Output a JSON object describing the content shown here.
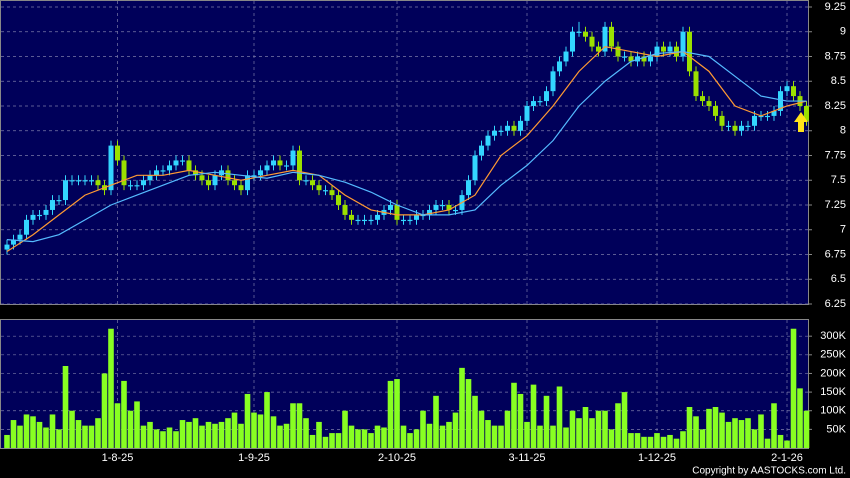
{
  "chart_data": [
    {
      "type": "candlestick",
      "categories": [
        null,
        null,
        null,
        null,
        null,
        null,
        null,
        null,
        null,
        null,
        null,
        null,
        null,
        null,
        null,
        null,
        null,
        "1-8-25",
        null,
        null,
        null,
        null,
        null,
        null,
        null,
        null,
        null,
        null,
        null,
        null,
        null,
        null,
        null,
        null,
        null,
        null,
        null,
        null,
        "1-9-25",
        null,
        null,
        null,
        null,
        null,
        null,
        null,
        null,
        null,
        null,
        null,
        null,
        null,
        null,
        null,
        null,
        null,
        null,
        null,
        null,
        null,
        "2-10-25",
        null,
        null,
        null,
        null,
        null,
        null,
        null,
        null,
        null,
        null,
        null,
        null,
        null,
        null,
        null,
        null,
        null,
        null,
        null,
        "3-11-25",
        null,
        null,
        null,
        null,
        null,
        null,
        null,
        null,
        null,
        null,
        null,
        null,
        null,
        null,
        null,
        null,
        null,
        null,
        null,
        "1-12-25",
        null,
        null,
        null,
        null,
        null,
        null,
        null,
        null,
        null,
        null,
        null,
        null,
        null,
        null,
        null,
        null,
        null,
        null,
        null,
        "2-1-26",
        null,
        null,
        null
      ],
      "open": [
        6.8,
        6.85,
        6.9,
        6.95,
        7.1,
        7.15,
        7.15,
        7.2,
        7.3,
        7.3,
        7.5,
        7.5,
        7.5,
        7.5,
        7.5,
        7.45,
        7.4,
        7.85,
        7.7,
        7.45,
        7.45,
        7.45,
        7.5,
        7.55,
        7.6,
        7.6,
        7.65,
        7.7,
        7.7,
        7.6,
        7.55,
        7.5,
        7.45,
        7.55,
        7.6,
        7.5,
        7.45,
        7.4,
        7.55,
        7.55,
        7.6,
        7.65,
        7.7,
        7.65,
        7.65,
        7.8,
        7.5,
        7.5,
        7.45,
        7.4,
        7.4,
        7.35,
        7.25,
        7.15,
        7.1,
        7.1,
        7.1,
        7.1,
        7.15,
        7.2,
        7.25,
        7.1,
        7.1,
        7.1,
        7.15,
        7.15,
        7.2,
        7.25,
        7.25,
        7.2,
        7.2,
        7.35,
        7.5,
        7.75,
        7.85,
        7.95,
        8.0,
        8.0,
        8.05,
        8.0,
        8.1,
        8.25,
        8.3,
        8.3,
        8.4,
        8.6,
        8.7,
        8.8,
        9.0,
        9.0,
        8.95,
        8.85,
        8.8,
        9.05,
        8.85,
        8.75,
        8.75,
        8.7,
        8.75,
        8.7,
        8.75,
        8.85,
        8.8,
        8.85,
        8.75,
        9.0,
        8.6,
        8.35,
        8.3,
        8.25,
        8.15,
        8.05,
        8.05,
        8.0,
        8.05,
        8.05,
        8.15,
        8.15,
        8.15,
        8.2,
        8.4,
        8.45,
        8.35,
        8.25
      ],
      "high": [
        6.9,
        6.95,
        7.0,
        7.15,
        7.2,
        7.2,
        7.25,
        7.35,
        7.35,
        7.55,
        7.55,
        7.55,
        7.55,
        7.55,
        7.55,
        7.5,
        7.9,
        7.9,
        7.75,
        7.5,
        7.5,
        7.55,
        7.6,
        7.65,
        7.65,
        7.7,
        7.75,
        7.75,
        7.75,
        7.65,
        7.6,
        7.55,
        7.6,
        7.65,
        7.65,
        7.55,
        7.5,
        7.6,
        7.6,
        7.65,
        7.7,
        7.75,
        7.75,
        7.7,
        7.85,
        7.85,
        7.55,
        7.55,
        7.5,
        7.45,
        7.45,
        7.4,
        7.3,
        7.2,
        7.15,
        7.15,
        7.15,
        7.2,
        7.25,
        7.3,
        7.3,
        7.15,
        7.15,
        7.2,
        7.2,
        7.25,
        7.3,
        7.3,
        7.3,
        7.25,
        7.4,
        7.55,
        7.8,
        7.9,
        8.0,
        8.05,
        8.05,
        8.1,
        8.1,
        8.15,
        8.3,
        8.35,
        8.35,
        8.45,
        8.65,
        8.75,
        8.85,
        9.05,
        9.1,
        9.05,
        9.0,
        8.9,
        9.1,
        9.1,
        8.9,
        8.8,
        8.8,
        8.8,
        8.8,
        8.8,
        8.9,
        8.9,
        8.9,
        8.9,
        9.05,
        9.05,
        8.65,
        8.4,
        8.35,
        8.3,
        8.2,
        8.1,
        8.1,
        8.1,
        8.1,
        8.2,
        8.2,
        8.2,
        8.25,
        8.45,
        8.5,
        8.5,
        8.4,
        8.3
      ],
      "low": [
        6.75,
        6.8,
        6.85,
        6.9,
        7.05,
        7.1,
        7.1,
        7.15,
        7.25,
        7.25,
        7.45,
        7.45,
        7.45,
        7.45,
        7.4,
        7.35,
        7.35,
        7.65,
        7.4,
        7.4,
        7.4,
        7.4,
        7.45,
        7.5,
        7.55,
        7.55,
        7.6,
        7.65,
        7.55,
        7.5,
        7.45,
        7.4,
        7.4,
        7.5,
        7.45,
        7.4,
        7.35,
        7.35,
        7.5,
        7.5,
        7.55,
        7.6,
        7.6,
        7.6,
        7.6,
        7.45,
        7.45,
        7.4,
        7.35,
        7.35,
        7.3,
        7.2,
        7.1,
        7.05,
        7.05,
        7.05,
        7.05,
        7.05,
        7.1,
        7.15,
        7.05,
        7.05,
        7.05,
        7.05,
        7.1,
        7.1,
        7.15,
        7.2,
        7.15,
        7.15,
        7.15,
        7.3,
        7.45,
        7.7,
        7.8,
        7.9,
        7.95,
        7.95,
        7.95,
        7.95,
        8.05,
        8.2,
        8.25,
        8.25,
        8.35,
        8.55,
        8.65,
        8.75,
        8.95,
        8.9,
        8.8,
        8.75,
        8.75,
        8.8,
        8.7,
        8.7,
        8.65,
        8.65,
        8.65,
        8.65,
        8.7,
        8.75,
        8.75,
        8.7,
        8.7,
        8.55,
        8.3,
        8.25,
        8.2,
        8.1,
        8.0,
        8.0,
        7.95,
        7.95,
        8.0,
        8.0,
        8.1,
        8.1,
        8.1,
        8.15,
        8.35,
        8.3,
        8.2,
        8.05
      ],
      "close": [
        6.85,
        6.9,
        6.95,
        7.1,
        7.15,
        7.15,
        7.2,
        7.3,
        7.3,
        7.5,
        7.5,
        7.5,
        7.5,
        7.5,
        7.45,
        7.4,
        7.85,
        7.7,
        7.45,
        7.45,
        7.45,
        7.5,
        7.55,
        7.6,
        7.6,
        7.65,
        7.7,
        7.7,
        7.6,
        7.55,
        7.5,
        7.45,
        7.55,
        7.6,
        7.5,
        7.45,
        7.4,
        7.55,
        7.55,
        7.6,
        7.65,
        7.7,
        7.65,
        7.65,
        7.8,
        7.5,
        7.5,
        7.45,
        7.4,
        7.4,
        7.35,
        7.25,
        7.15,
        7.1,
        7.1,
        7.1,
        7.1,
        7.15,
        7.2,
        7.25,
        7.1,
        7.1,
        7.1,
        7.15,
        7.15,
        7.2,
        7.25,
        7.25,
        7.2,
        7.2,
        7.35,
        7.5,
        7.75,
        7.85,
        7.95,
        8.0,
        8.0,
        8.05,
        8.0,
        8.1,
        8.25,
        8.3,
        8.3,
        8.4,
        8.6,
        8.7,
        8.8,
        9.0,
        9.0,
        8.95,
        8.85,
        8.8,
        9.05,
        8.85,
        8.75,
        8.75,
        8.7,
        8.75,
        8.7,
        8.75,
        8.85,
        8.8,
        8.85,
        8.75,
        9.0,
        8.6,
        8.35,
        8.3,
        8.25,
        8.15,
        8.05,
        8.05,
        8.0,
        8.05,
        8.05,
        8.15,
        8.15,
        8.15,
        8.2,
        8.4,
        8.45,
        8.35,
        8.25,
        8.1
      ],
      "up_color": "#33d6ff",
      "down_color": "#9be000",
      "series": [
        {
          "color": "#ff9a33",
          "x": [
            0,
            4,
            8,
            12,
            16,
            20,
            24,
            28,
            32,
            36,
            40,
            44,
            48,
            52,
            56,
            60,
            64,
            68,
            72,
            76,
            80,
            84,
            88,
            92,
            96,
            100,
            104,
            108,
            112,
            116,
            120,
            123
          ],
          "values": [
            6.78,
            6.95,
            7.15,
            7.35,
            7.45,
            7.55,
            7.55,
            7.6,
            7.55,
            7.5,
            7.55,
            7.6,
            7.55,
            7.35,
            7.2,
            7.15,
            7.15,
            7.2,
            7.35,
            7.75,
            7.95,
            8.25,
            8.6,
            8.85,
            8.8,
            8.75,
            8.8,
            8.6,
            8.25,
            8.15,
            8.25,
            8.3
          ]
        },
        {
          "color": "#55bbff",
          "x": [
            0,
            4,
            8,
            12,
            16,
            20,
            24,
            28,
            32,
            36,
            40,
            44,
            48,
            52,
            56,
            60,
            64,
            68,
            72,
            76,
            80,
            84,
            88,
            92,
            96,
            100,
            104,
            108,
            112,
            116,
            120,
            123
          ],
          "values": [
            6.9,
            6.88,
            6.95,
            7.1,
            7.25,
            7.35,
            7.45,
            7.55,
            7.58,
            7.55,
            7.52,
            7.58,
            7.55,
            7.48,
            7.38,
            7.25,
            7.15,
            7.15,
            7.2,
            7.45,
            7.65,
            7.9,
            8.25,
            8.5,
            8.7,
            8.78,
            8.8,
            8.75,
            8.55,
            8.35,
            8.3,
            8.3
          ]
        }
      ],
      "ylim": [
        6.25,
        9.25
      ],
      "yticks": [
        6.25,
        6.5,
        6.75,
        7,
        7.25,
        7.5,
        7.75,
        8,
        8.25,
        8.5,
        8.75,
        9,
        9.25
      ],
      "grid": true
    },
    {
      "type": "bar",
      "color": "#88ff22",
      "values": [
        35000,
        75000,
        60000,
        90000,
        85000,
        70000,
        55000,
        90000,
        50000,
        220000,
        100000,
        75000,
        60000,
        60000,
        80000,
        200000,
        320000,
        120000,
        180000,
        100000,
        125000,
        60000,
        70000,
        50000,
        45000,
        55000,
        45000,
        75000,
        70000,
        80000,
        60000,
        70000,
        65000,
        70000,
        80000,
        95000,
        65000,
        145000,
        95000,
        90000,
        150000,
        85000,
        60000,
        65000,
        120000,
        120000,
        80000,
        35000,
        70000,
        30000,
        40000,
        40000,
        100000,
        60000,
        50000,
        50000,
        40000,
        60000,
        55000,
        180000,
        185000,
        60000,
        40000,
        50000,
        100000,
        65000,
        140000,
        60000,
        70000,
        95000,
        215000,
        185000,
        140000,
        100000,
        75000,
        60000,
        60000,
        100000,
        175000,
        145000,
        70000,
        170000,
        60000,
        140000,
        60000,
        165000,
        55000,
        100000,
        80000,
        110000,
        80000,
        100000,
        100000,
        50000,
        120000,
        150000,
        40000,
        40000,
        30000,
        30000,
        40000,
        30000,
        35000,
        25000,
        45000,
        110000,
        85000,
        50000,
        105000,
        110000,
        95000,
        70000,
        80000,
        75000,
        80000,
        50000,
        90000,
        25000,
        120000,
        35000,
        20000,
        320000,
        160000,
        100000
      ],
      "ylim": [
        0,
        330000
      ],
      "yticks": [
        {
          "value": 50000,
          "label": "50K"
        },
        {
          "value": 100000,
          "label": "100K"
        },
        {
          "value": 150000,
          "label": "150K"
        },
        {
          "value": 200000,
          "label": "200K"
        },
        {
          "value": 250000,
          "label": "250K"
        },
        {
          "value": 300000,
          "label": "300K"
        }
      ],
      "grid": true
    }
  ],
  "footer": "Copyright by AASTOCKS.com Ltd."
}
